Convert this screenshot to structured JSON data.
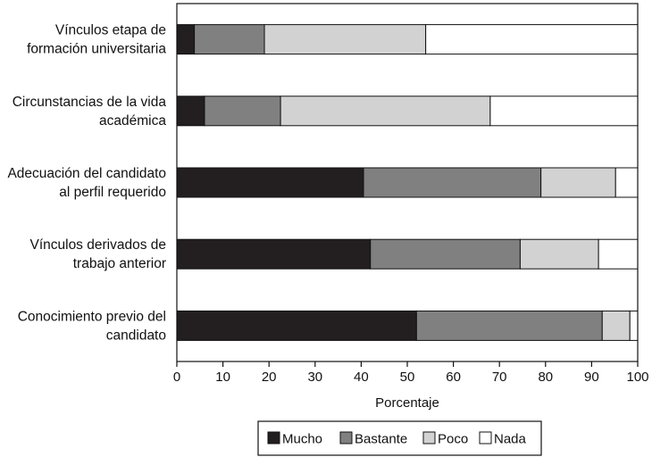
{
  "chart_data": {
    "type": "bar",
    "orientation": "horizontal",
    "stacked": true,
    "title": "",
    "xlabel": "Porcentaje",
    "ylabel": "",
    "xlim": [
      0,
      100
    ],
    "x_ticks": [
      "0",
      "10",
      "20",
      "30",
      "40",
      "50",
      "60",
      "70",
      "80",
      "90",
      "100"
    ],
    "grid": false,
    "legend_position": "bottom",
    "categories": [
      [
        "Vínculos etapa de",
        "formación universitaria"
      ],
      [
        "Circunstancias de la vida",
        "académica"
      ],
      [
        "Adecuación del candidato",
        "al perfil requerido"
      ],
      [
        "Vínculos derivados de",
        "trabajo anterior"
      ],
      [
        "Conocimiento previo del",
        "candidato"
      ]
    ],
    "series": [
      {
        "name": "Mucho",
        "color": "#231f20",
        "values": [
          3.8,
          6.0,
          40.5,
          42.0,
          52.0
        ]
      },
      {
        "name": "Bastante",
        "color": "#808080",
        "values": [
          15.2,
          16.5,
          38.5,
          32.5,
          40.3
        ]
      },
      {
        "name": "Poco",
        "color": "#d2d2d2",
        "values": [
          35.0,
          45.5,
          16.2,
          17.0,
          6.0
        ]
      },
      {
        "name": "Nada",
        "color": "#ffffff",
        "values": [
          46.0,
          32.0,
          4.8,
          8.5,
          1.7
        ]
      }
    ]
  }
}
